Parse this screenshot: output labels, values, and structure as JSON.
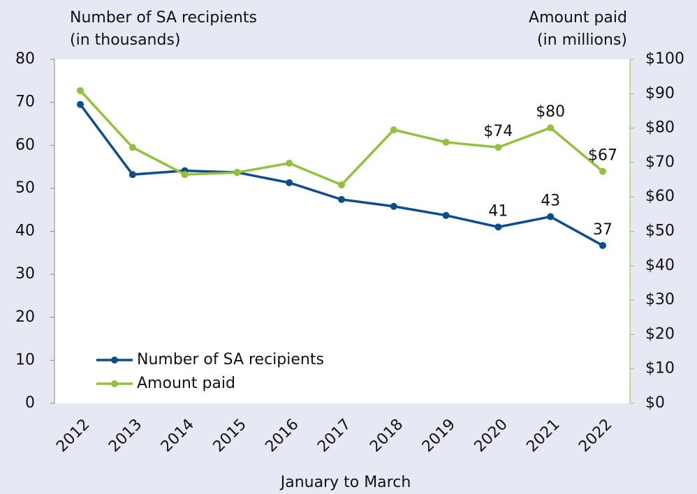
{
  "chart_data": {
    "type": "line",
    "y_label": [
      "Number of SA recipients",
      "(in thousands)"
    ],
    "y2_label": [
      "Amount paid",
      "(in millions)"
    ],
    "x_label": "January to March",
    "categories": [
      "2012",
      "2013",
      "2014",
      "2015",
      "2016",
      "2017",
      "2018",
      "2019",
      "2020",
      "2021",
      "2022"
    ],
    "series": [
      {
        "name": "Number of SA recipients",
        "color": "#0e4d8c",
        "values": [
          69.5,
          53.2,
          54.1,
          53.7,
          51.3,
          47.4,
          45.8,
          43.7,
          41,
          43.4,
          36.7
        ],
        "value_labels": [
          null,
          null,
          null,
          null,
          null,
          null,
          null,
          null,
          "41",
          "43",
          "37"
        ]
      },
      {
        "name": "Amount paid",
        "color": "#93c13e",
        "axis": "y2",
        "values": [
          90.9,
          74.4,
          66.5,
          67.1,
          69.8,
          63.5,
          79.5,
          75.9,
          74.4,
          80.1,
          67.4
        ],
        "value_labels": [
          null,
          null,
          null,
          null,
          null,
          null,
          null,
          null,
          "$74",
          "$80",
          "$67"
        ]
      }
    ],
    "ylim": [
      0,
      80
    ],
    "yticks": [
      0,
      10,
      20,
      30,
      40,
      50,
      60,
      70,
      80
    ],
    "y2lim": [
      0,
      100
    ],
    "y2ticks": [
      {
        "value": 0,
        "label": "$0"
      },
      {
        "value": 10,
        "label": "$10"
      },
      {
        "value": 20,
        "label": "$20"
      },
      {
        "value": 30,
        "label": "$30"
      },
      {
        "value": 40,
        "label": "$40"
      },
      {
        "value": 50,
        "label": "$50"
      },
      {
        "value": 60,
        "label": "$60"
      },
      {
        "value": 70,
        "label": "$70"
      },
      {
        "value": 80,
        "label": "$80"
      },
      {
        "value": 90,
        "label": "$90"
      },
      {
        "value": 100,
        "label": "$100"
      }
    ],
    "legend": "lower left"
  }
}
